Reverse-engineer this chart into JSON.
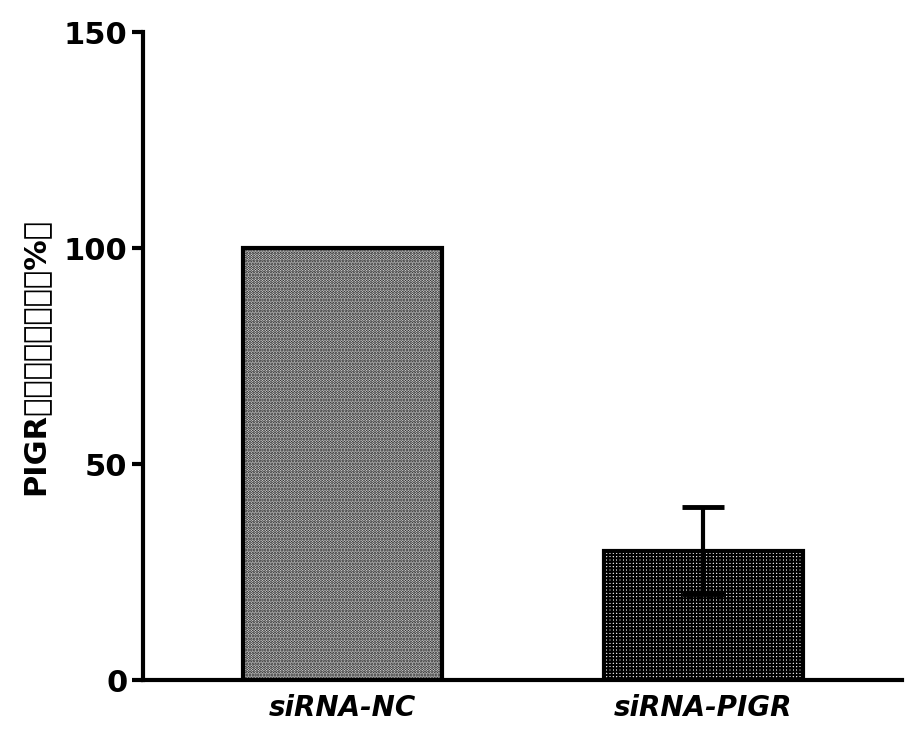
{
  "categories": [
    "siRNA-NC",
    "siRNA-PIGR"
  ],
  "values": [
    100,
    30
  ],
  "errors": [
    0,
    10
  ],
  "ylabel": "PIGR蛋白相对表达量（%）",
  "ylim": [
    0,
    150
  ],
  "yticks": [
    0,
    50,
    100,
    150
  ],
  "bar_width": 0.55,
  "background_color": "#ffffff",
  "tick_fontsize": 22,
  "ylabel_fontsize": 22,
  "xlabel_fontsize": 20,
  "linewidth": 3.0,
  "bar1_hatch": "......",
  "bar2_hatch": "+++++",
  "error_value": 10,
  "bar2_value": 30,
  "capsize": 15
}
